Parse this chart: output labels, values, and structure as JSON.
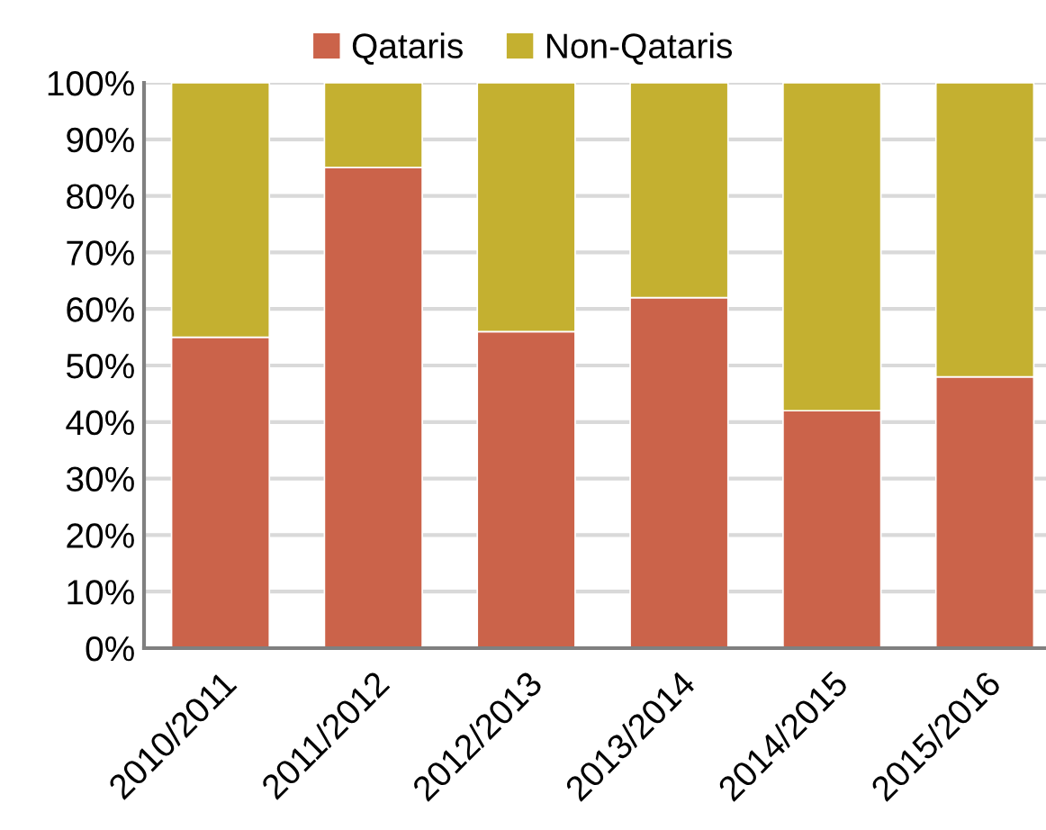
{
  "chart_data": {
    "type": "bar",
    "stacked": true,
    "categories": [
      "2010/2011",
      "2011/2012",
      "2012/2013",
      "2013/2014",
      "2014/2015",
      "2015/2016"
    ],
    "series": [
      {
        "name": "Qataris",
        "color": "#cb634a",
        "values": [
          55,
          85,
          56,
          62,
          42,
          48
        ]
      },
      {
        "name": "Non-Qataris",
        "color": "#c4b030",
        "values": [
          45,
          15,
          44,
          38,
          58,
          52
        ]
      }
    ],
    "ylim": [
      0,
      100
    ],
    "yticks": [
      {
        "value": 0,
        "label": "0%"
      },
      {
        "value": 10,
        "label": "10%"
      },
      {
        "value": 20,
        "label": "20%"
      },
      {
        "value": 30,
        "label": "30%"
      },
      {
        "value": 40,
        "label": "40%"
      },
      {
        "value": 50,
        "label": "50%"
      },
      {
        "value": 60,
        "label": "60%"
      },
      {
        "value": 70,
        "label": "70%"
      },
      {
        "value": 80,
        "label": "80%"
      },
      {
        "value": 90,
        "label": "90%"
      },
      {
        "value": 100,
        "label": "100%"
      }
    ],
    "grid": "y",
    "legend": "top"
  }
}
